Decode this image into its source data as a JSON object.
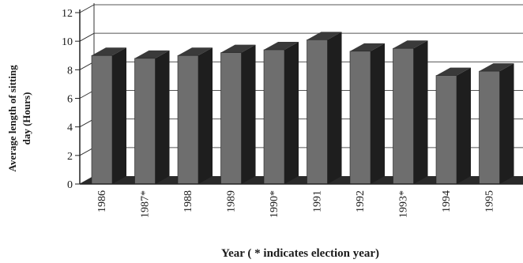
{
  "chart_data": {
    "type": "bar",
    "categories": [
      "1986",
      "1987*",
      "1988",
      "1989",
      "1990*",
      "1991",
      "1992",
      "1993*",
      "1994",
      "1995"
    ],
    "values": [
      9.0,
      8.8,
      9.0,
      9.2,
      9.4,
      10.1,
      9.3,
      9.5,
      7.6,
      7.9
    ],
    "title": "",
    "ylabel_line1": "Average length of sitting",
    "ylabel_line2": "day (Hours)",
    "xlabel": "Year ( * indicates election year)",
    "ylim": [
      0,
      12
    ],
    "yticks": [
      "0",
      "2",
      "4",
      "6",
      "8",
      "10",
      "12"
    ],
    "grid": true,
    "style": "3d-bar",
    "colors": {
      "bar_front": "#6e6e6e",
      "bar_side": "#1e1e1e",
      "bar_top": "#3a3a3a",
      "axis": "#222222"
    }
  }
}
